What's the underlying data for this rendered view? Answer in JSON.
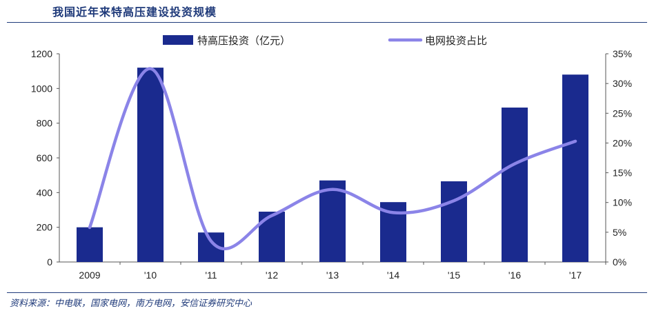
{
  "header": {
    "title": "我国近年来特高压建设投资规模"
  },
  "footer": {
    "source": "资料来源：中电联，国家电网，南方电网，安信证券研究中心"
  },
  "chart_data": {
    "type": "bar",
    "title": "我国近年来特高压建设投资规模",
    "categories": [
      "2009",
      "'10",
      "'11",
      "'12",
      "'13",
      "'14",
      "'15",
      "'16",
      "'17"
    ],
    "series": [
      {
        "name": "特高压投资（亿元）",
        "type": "bar",
        "axis": "left",
        "values": [
          200,
          1120,
          170,
          290,
          470,
          345,
          465,
          890,
          1080
        ]
      },
      {
        "name": "电网投资占比",
        "type": "line",
        "axis": "right",
        "unit": "%",
        "values": [
          5.8,
          32.5,
          3.5,
          7.8,
          12.2,
          8.3,
          10.3,
          16.5,
          20.3
        ]
      }
    ],
    "ylim_left": [
      0,
      1200
    ],
    "yticks_left": [
      "0",
      "200",
      "400",
      "600",
      "800",
      "1000",
      "1200"
    ],
    "ylim_right": [
      0,
      35
    ],
    "yticks_right": [
      "0%",
      "5%",
      "10%",
      "15%",
      "20%",
      "25%",
      "30%",
      "35%"
    ],
    "legend_position": "top",
    "grid": false,
    "colors": {
      "bar": "#1a2a8e",
      "line": "#8b84e8",
      "text": "#1f3a7a"
    }
  }
}
